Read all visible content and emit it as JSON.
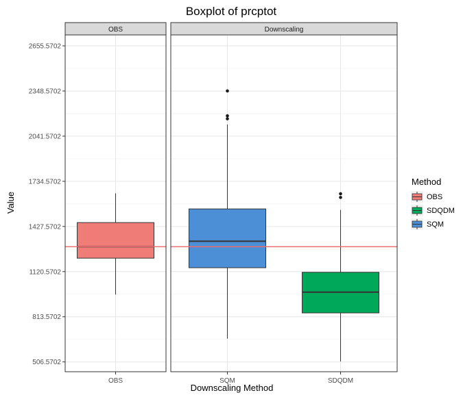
{
  "chart_data": {
    "type": "boxplot",
    "title": "Boxplot of prcptot",
    "xlabel": "Downscaling Method",
    "ylabel": "Value",
    "ylim": [
      440,
      2730
    ],
    "yticks": [
      "506.5702",
      "813.5702",
      "1120.5702",
      "1427.5702",
      "1734.5702",
      "2041.5702",
      "2348.5702",
      "2655.5702"
    ],
    "facets": [
      {
        "label": "OBS",
        "categories": [
          "OBS"
        ]
      },
      {
        "label": "Downscaling",
        "categories": [
          "SQM",
          "SDQDM"
        ]
      }
    ],
    "boxes": [
      {
        "category": "OBS",
        "facet": 0,
        "method": "OBS",
        "min": 965,
        "q1": 1212,
        "median": 1290,
        "q3": 1454,
        "max": 1653,
        "outliers": []
      },
      {
        "category": "SQM",
        "facet": 1,
        "method": "SQM",
        "min": 665,
        "q1": 1147,
        "median": 1327,
        "q3": 1547,
        "max": 2121,
        "outliers": [
          2180,
          2160,
          2349
        ]
      },
      {
        "category": "SDQDM",
        "facet": 1,
        "method": "SDQDM",
        "min": 510,
        "q1": 840,
        "median": 981,
        "q3": 1116,
        "max": 1540,
        "outliers": [
          1625,
          1650
        ]
      }
    ],
    "reference_line": {
      "value": 1290,
      "color": "#e86d6d"
    },
    "legend": {
      "title": "Method",
      "position": "right",
      "entries": [
        {
          "name": "OBS",
          "color": "#f07c78"
        },
        {
          "name": "SDQDM",
          "color": "#00a85a"
        },
        {
          "name": "SQM",
          "color": "#4d8fd6"
        }
      ]
    },
    "grid": true
  }
}
